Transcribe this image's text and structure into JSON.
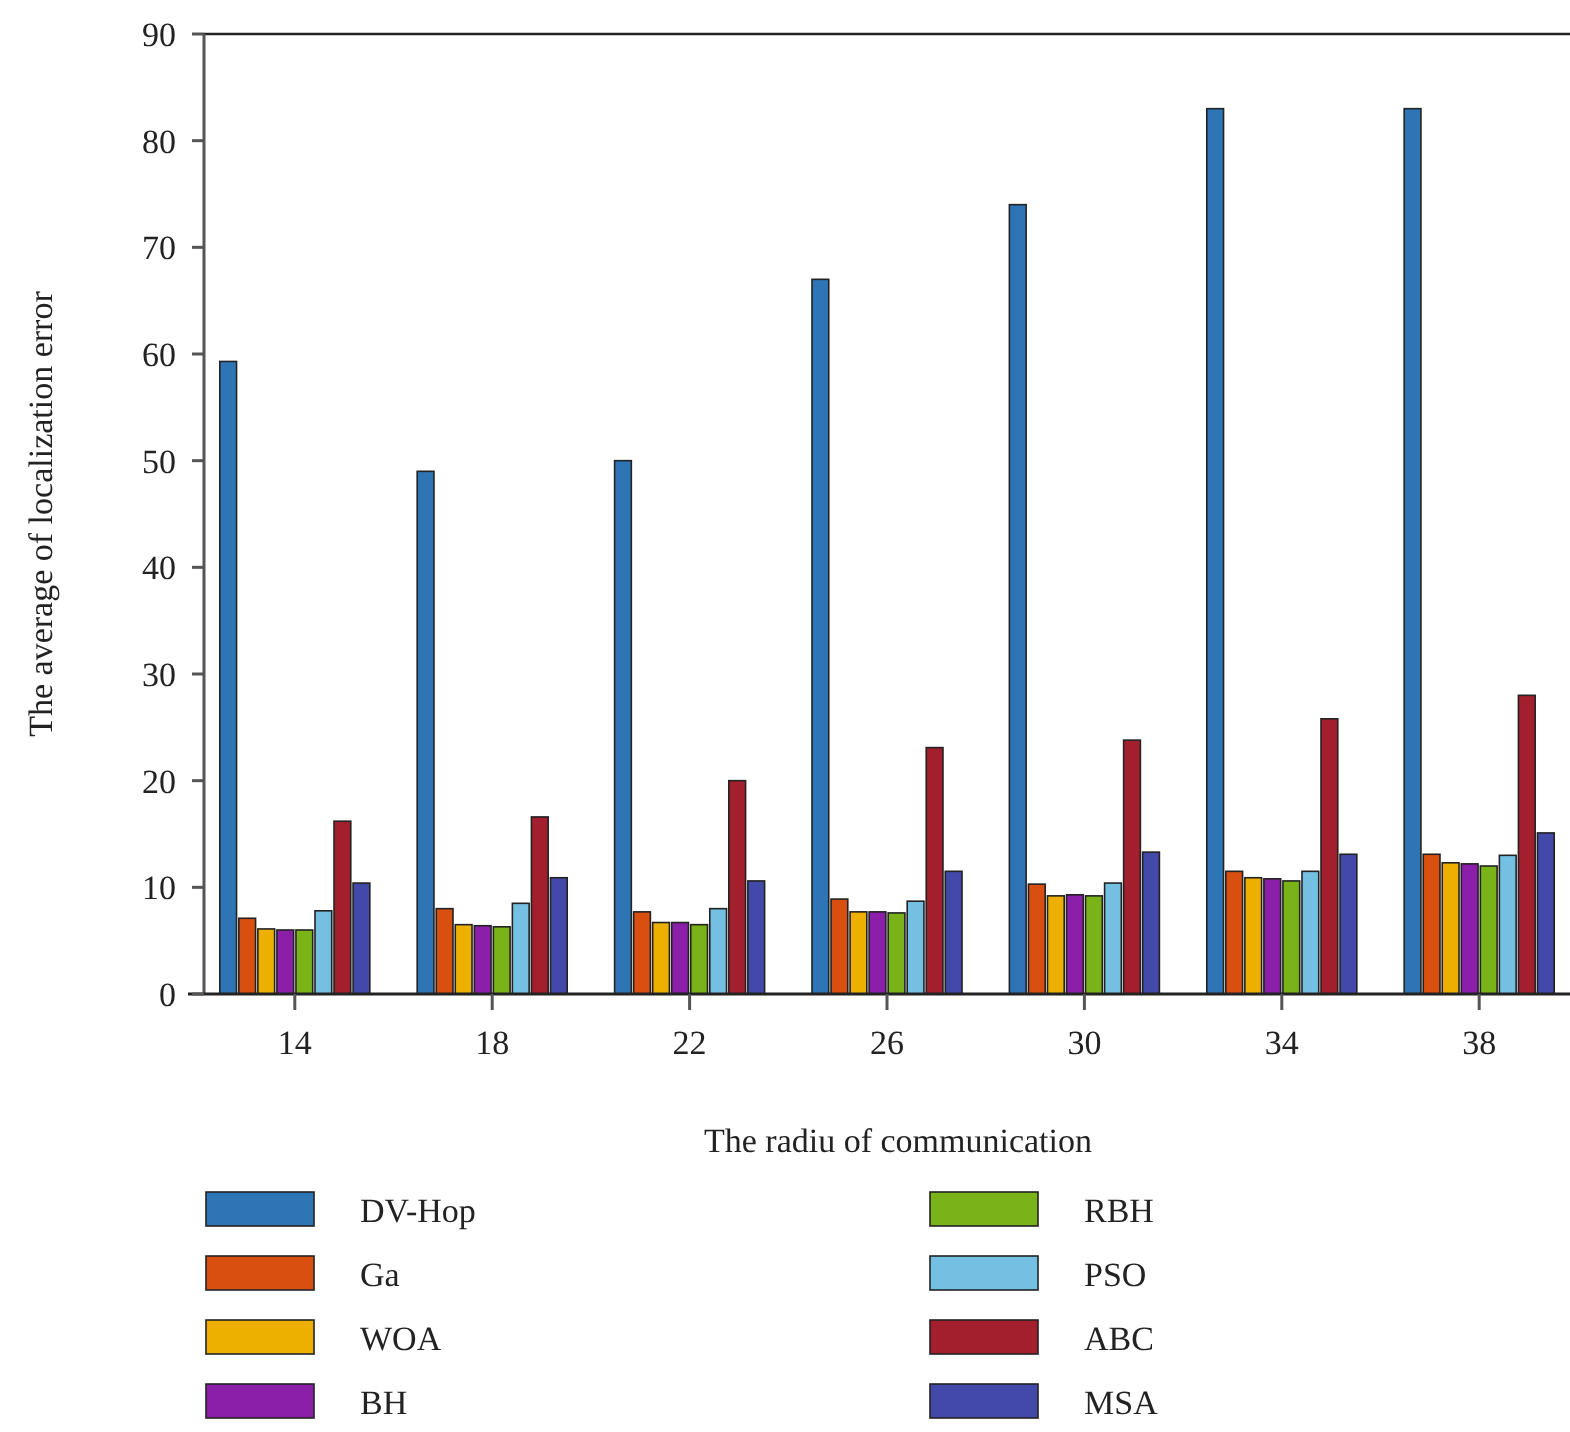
{
  "chart_data": {
    "type": "bar",
    "xlabel": "The radiu of communication",
    "ylabel": "The average of localization error",
    "categories": [
      "14",
      "18",
      "22",
      "26",
      "30",
      "34",
      "38"
    ],
    "series": [
      {
        "name": "DV-Hop",
        "color": "#2e75b6",
        "values": [
          59.3,
          49,
          50,
          67,
          74,
          83,
          83
        ]
      },
      {
        "name": "Ga",
        "color": "#d94f0f",
        "values": [
          7.1,
          8.0,
          7.7,
          8.9,
          10.3,
          11.5,
          13.1
        ]
      },
      {
        "name": "WOA",
        "color": "#edb000",
        "values": [
          6.1,
          6.5,
          6.7,
          7.7,
          9.2,
          10.9,
          12.3
        ]
      },
      {
        "name": "BH",
        "color": "#8b1fa9",
        "values": [
          6.0,
          6.4,
          6.7,
          7.7,
          9.3,
          10.8,
          12.2
        ]
      },
      {
        "name": "RBH",
        "color": "#7ab317",
        "values": [
          6.0,
          6.3,
          6.5,
          7.6,
          9.2,
          10.6,
          12.0
        ]
      },
      {
        "name": "PSO",
        "color": "#74c0e3",
        "values": [
          7.8,
          8.5,
          8.0,
          8.7,
          10.4,
          11.5,
          13.0
        ]
      },
      {
        "name": "ABC",
        "color": "#a31f2e",
        "values": [
          16.2,
          16.6,
          20.0,
          23.1,
          23.8,
          25.8,
          28.0
        ]
      },
      {
        "name": "MSA",
        "color": "#4349a8",
        "values": [
          10.4,
          10.9,
          10.6,
          11.5,
          13.3,
          13.1,
          15.1
        ]
      }
    ],
    "ylim": [
      0,
      90
    ],
    "yticks": [
      0,
      10,
      20,
      30,
      40,
      50,
      60,
      70,
      80,
      90
    ],
    "grid": false,
    "legend": "bottom"
  }
}
